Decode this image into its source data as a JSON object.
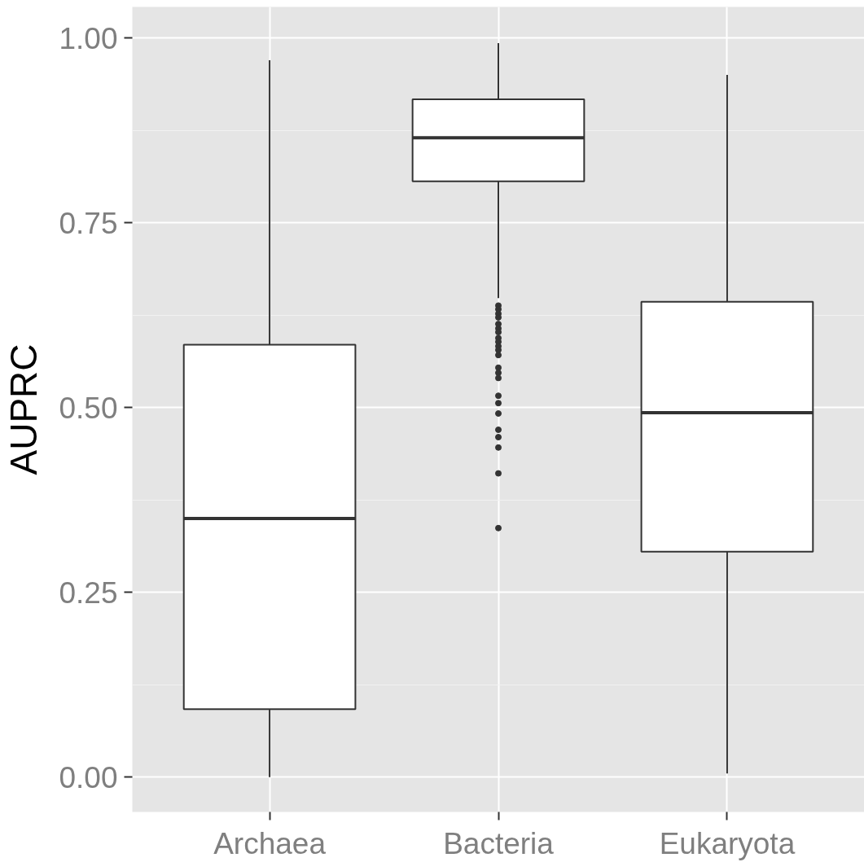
{
  "chart_data": {
    "type": "box",
    "ylabel": "AUPRC",
    "categories": [
      "Archaea",
      "Bacteria",
      "Eukaryota"
    ],
    "boxes": [
      {
        "low": 0.0,
        "q1": 0.092,
        "median": 0.35,
        "q3": 0.585,
        "high": 0.97
      },
      {
        "low": 0.648,
        "q1": 0.806,
        "median": 0.865,
        "q3": 0.917,
        "high": 0.993,
        "outliers": [
          0.638,
          0.633,
          0.627,
          0.622,
          0.613,
          0.607,
          0.602,
          0.594,
          0.589,
          0.583,
          0.578,
          0.571,
          0.554,
          0.547,
          0.54,
          0.516,
          0.506,
          0.492,
          0.47,
          0.46,
          0.446,
          0.411,
          0.337
        ]
      },
      {
        "low": 0.005,
        "q1": 0.305,
        "median": 0.493,
        "q3": 0.643,
        "high": 0.95
      }
    ],
    "ylim": [
      -0.047,
      1.042
    ],
    "yticks": [
      {
        "value": 0,
        "label": "0.00"
      },
      {
        "value": 0.25,
        "label": "0.25"
      },
      {
        "value": 0.5,
        "label": "0.50"
      },
      {
        "value": 0.75,
        "label": "0.75"
      },
      {
        "value": 1,
        "label": "1.00"
      }
    ],
    "grid": true
  }
}
